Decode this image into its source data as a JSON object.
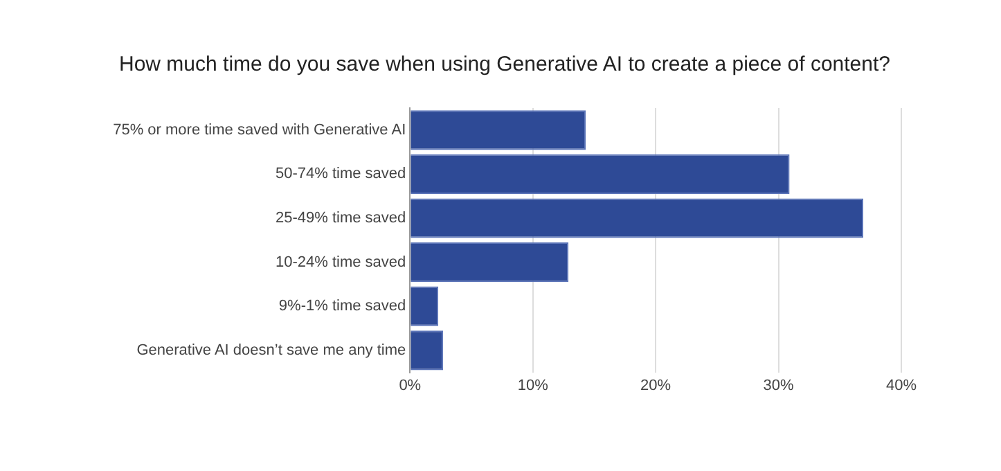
{
  "chart_data": {
    "type": "bar",
    "orientation": "horizontal",
    "title": "How much time do you save when using Generative AI to create a piece of content?",
    "categories": [
      "75% or more time saved with Generative AI",
      "50-74% time saved",
      "25-49% time saved",
      "10-24% time saved",
      "9%-1% time saved",
      "Generative AI doesn’t save me any time"
    ],
    "values": [
      14.3,
      30.9,
      36.9,
      12.9,
      2.3,
      2.7
    ],
    "color": "#2e4a96",
    "xlim": [
      0,
      40
    ],
    "xticks": [
      {
        "value": 0,
        "label": "0%"
      },
      {
        "value": 10,
        "label": "10%"
      },
      {
        "value": 20,
        "label": "20%"
      },
      {
        "value": 30,
        "label": "30%"
      },
      {
        "value": 40,
        "label": "40%"
      }
    ],
    "grid": "x",
    "legend": false
  }
}
